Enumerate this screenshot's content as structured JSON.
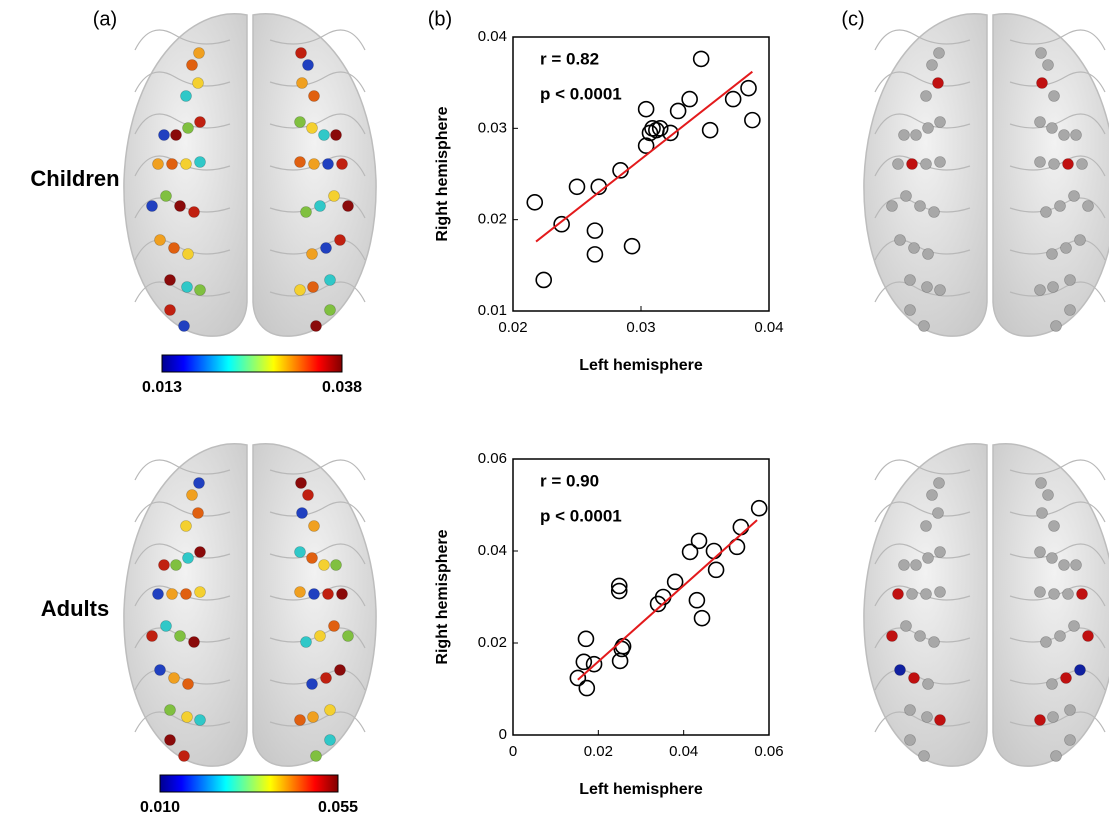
{
  "panel_labels": [
    "(a)",
    "(b)",
    "(c)"
  ],
  "row_labels": [
    "Children",
    "Adults"
  ],
  "colorbars": [
    {
      "ticks": [
        0.013,
        0.038
      ]
    },
    {
      "ticks": [
        {
          "value": 0.01,
          "label": "0.010"
        },
        0.055
      ]
    }
  ],
  "chart_data": [
    {
      "type": "scatter",
      "x_label": "Left hemisphere",
      "y_label": "Right hemisphere",
      "annotations": [
        "r = 0.82",
        "p < 0.0001"
      ],
      "xlim": [
        0.02,
        0.04
      ],
      "ylim": [
        0.01,
        0.04
      ],
      "xticks": [
        0.02,
        0.03,
        0.04
      ],
      "yticks": [
        0.01,
        0.02,
        0.03,
        0.04
      ],
      "color": "#000000",
      "x": [
        0.0217,
        0.0224,
        0.0238,
        0.025,
        0.0267,
        0.0284,
        0.0264,
        0.0264,
        0.0293,
        0.0304,
        0.0304,
        0.0307,
        0.0309,
        0.0312,
        0.0315,
        0.0323,
        0.0329,
        0.0338,
        0.0347,
        0.0354,
        0.0372,
        0.0384,
        0.0387
      ],
      "y": [
        0.0219,
        0.0134,
        0.0195,
        0.0236,
        0.0236,
        0.0254,
        0.0188,
        0.0162,
        0.0171,
        0.0321,
        0.0281,
        0.0295,
        0.03,
        0.0298,
        0.03,
        0.0295,
        0.0319,
        0.0332,
        0.0376,
        0.0298,
        0.0332,
        0.0344,
        0.0309
      ],
      "fit_line": {
        "x": [
          0.0218,
          0.0387
        ],
        "y": [
          0.0176,
          0.0362
        ],
        "color": "#e31a1c"
      }
    },
    {
      "type": "scatter",
      "x_label": "Left hemisphere",
      "y_label": "Right hemisphere",
      "annotations": [
        "r = 0.90",
        "p < 0.0001"
      ],
      "xlim": [
        0,
        0.06
      ],
      "ylim": [
        0,
        0.06
      ],
      "xticks": [
        0,
        0.02,
        0.04,
        0.06
      ],
      "yticks": [
        0,
        0.02,
        0.04,
        0.06
      ],
      "color": "#000000",
      "x": [
        0.0152,
        0.0171,
        0.0166,
        0.0173,
        0.019,
        0.0251,
        0.0249,
        0.0249,
        0.0255,
        0.0258,
        0.034,
        0.0352,
        0.038,
        0.0415,
        0.0436,
        0.0431,
        0.0443,
        0.0471,
        0.0476,
        0.0525,
        0.0534,
        0.0577
      ],
      "y": [
        0.0124,
        0.0209,
        0.0159,
        0.0102,
        0.0154,
        0.0161,
        0.0324,
        0.0313,
        0.0187,
        0.0193,
        0.0285,
        0.03,
        0.0333,
        0.0398,
        0.0422,
        0.0293,
        0.0254,
        0.04,
        0.0359,
        0.0409,
        0.0452,
        0.0493
      ],
      "fit_line": {
        "x": [
          0.0152,
          0.0572
        ],
        "y": [
          0.012,
          0.0467
        ],
        "color": "#e31a1c"
      }
    }
  ]
}
